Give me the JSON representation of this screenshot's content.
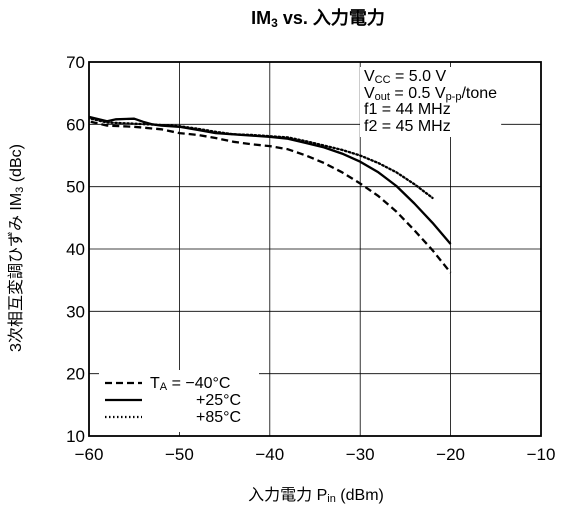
{
  "chart_data": {
    "type": "line",
    "title": {
      "base": "IM",
      "sub": "3",
      "rest": " vs. 入力電力"
    },
    "xlabel": {
      "base": "入力電力  P",
      "sub": "in",
      "rest": " (dBm)"
    },
    "ylabel": {
      "base": "3次相互変調ひずみ  IM",
      "sub": "3",
      "rest": " (dBc)"
    },
    "xlim": [
      -60,
      -10
    ],
    "ylim": [
      10,
      70
    ],
    "xticks": [
      "−60",
      "−50",
      "−40",
      "−30",
      "−20",
      "−10"
    ],
    "yticks": [
      "10",
      "20",
      "30",
      "40",
      "50",
      "60",
      "70"
    ],
    "grid": true,
    "conditions": [
      {
        "base": "V",
        "sub": "CC",
        "rest": " = 5.0 V"
      },
      {
        "base": "V",
        "sub": "out",
        "rest": " = 0.5 V",
        "sub2": "p-p",
        "rest2": "/tone"
      },
      {
        "base": "f1 = 44 MHz"
      },
      {
        "base": "f2 = 45 MHz"
      }
    ],
    "legend_position": "bottom-left",
    "series": [
      {
        "name": "T = −40°C",
        "legend_base": "T",
        "legend_sub": "A",
        "legend_rest": " = −40°C",
        "style": "dashed",
        "x": [
          -61,
          -58,
          -55,
          -52,
          -50,
          -48,
          -46,
          -44,
          -42,
          -40,
          -38,
          -36,
          -34,
          -32,
          -30,
          -28,
          -26,
          -24,
          -22,
          -20
        ],
        "y": [
          60.8,
          59.8,
          59.6,
          59.2,
          58.6,
          58.3,
          57.8,
          57.2,
          56.8,
          56.5,
          56.0,
          55.0,
          53.8,
          52.3,
          50.5,
          48.5,
          46.0,
          43.0,
          39.8,
          36.2
        ]
      },
      {
        "name": "+25°C",
        "legend_base": "+25°C",
        "style": "solid",
        "x": [
          -61,
          -60,
          -58,
          -57,
          -55,
          -54,
          -53,
          -52,
          -50,
          -48,
          -46,
          -44,
          -42,
          -40,
          -38,
          -36,
          -34,
          -32,
          -30,
          -28,
          -26,
          -24,
          -22,
          -20
        ],
        "y": [
          61.7,
          61.2,
          60.5,
          60.8,
          60.9,
          60.4,
          60.0,
          59.8,
          59.6,
          59.1,
          58.6,
          58.4,
          58.2,
          58.0,
          57.7,
          57.0,
          56.3,
          55.3,
          54.0,
          52.3,
          50.1,
          47.3,
          44.2,
          40.8
        ]
      },
      {
        "name": "+85°C",
        "legend_base": "+85°C",
        "style": "dotted",
        "x": [
          -61,
          -58,
          -55,
          -52,
          -50,
          -48,
          -46,
          -44,
          -42,
          -40,
          -38,
          -36,
          -34,
          -32,
          -30,
          -28,
          -26,
          -24,
          -22
        ],
        "y": [
          61.3,
          60.3,
          60.1,
          59.9,
          59.7,
          59.3,
          58.8,
          58.4,
          58.3,
          58.1,
          57.9,
          57.3,
          56.6,
          55.9,
          55.0,
          53.8,
          52.3,
          50.4,
          48.2
        ]
      }
    ]
  }
}
